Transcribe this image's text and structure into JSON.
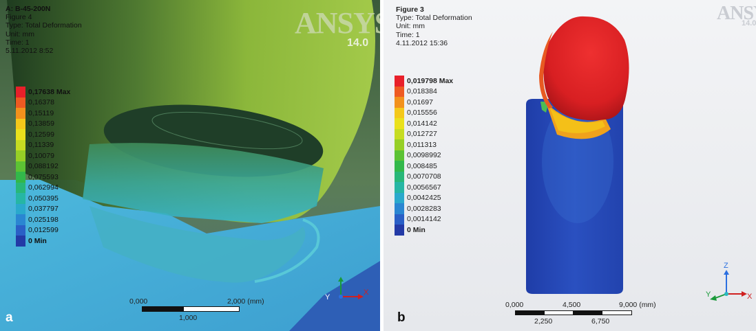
{
  "panel_a": {
    "label": "a",
    "title": "A: B-45-200N",
    "figure": "Figure 4",
    "type": "Type: Total Deformation",
    "unit": "Unit: mm",
    "time": "Time: 1",
    "date": "5.11.2012 8:52",
    "logo": "ANSYS",
    "version": "14.0",
    "legend": [
      {
        "value": "0,17638 Max",
        "color": "#e8202a",
        "bold": true
      },
      {
        "value": "0,16378",
        "color": "#ee5a22",
        "bold": false
      },
      {
        "value": "0,15119",
        "color": "#f2911c",
        "bold": false
      },
      {
        "value": "0,13859",
        "color": "#f4c81a",
        "bold": false
      },
      {
        "value": "0,12599",
        "color": "#eae11c",
        "bold": false
      },
      {
        "value": "0,11339",
        "color": "#c6dc22",
        "bold": false
      },
      {
        "value": "0,10079",
        "color": "#96cf26",
        "bold": false
      },
      {
        "value": "0,088192",
        "color": "#5cc234",
        "bold": false
      },
      {
        "value": "0,075593",
        "color": "#32b84a",
        "bold": false
      },
      {
        "value": "0,062994",
        "color": "#28b778",
        "bold": false
      },
      {
        "value": "0,050395",
        "color": "#26b6a4",
        "bold": false
      },
      {
        "value": "0,037797",
        "color": "#2aa9cc",
        "bold": false
      },
      {
        "value": "0,025198",
        "color": "#2a86d2",
        "bold": false
      },
      {
        "value": "0,012599",
        "color": "#2a5fc6",
        "bold": false
      },
      {
        "value": "0 Min",
        "color": "#233aa6",
        "bold": true
      }
    ],
    "scale": {
      "start": "0,000",
      "end": "2,000 (mm)",
      "mid": "1,000"
    },
    "triad": {
      "y": "Y",
      "x": "X"
    }
  },
  "panel_b": {
    "label": "b",
    "figure": "Figure 3",
    "type": "Type: Total Deformation",
    "unit": "Unit: mm",
    "time": "Time: 1",
    "date": "4.11.2012 15:36",
    "logo": "ANSYS",
    "version": "14.0",
    "legend": [
      {
        "value": "0,019798 Max",
        "color": "#e8202a",
        "bold": true
      },
      {
        "value": "0,018384",
        "color": "#ee5a22",
        "bold": false
      },
      {
        "value": "0,01697",
        "color": "#f2911c",
        "bold": false
      },
      {
        "value": "0,015556",
        "color": "#f4c81a",
        "bold": false
      },
      {
        "value": "0,014142",
        "color": "#eae11c",
        "bold": false
      },
      {
        "value": "0,012727",
        "color": "#c6dc22",
        "bold": false
      },
      {
        "value": "0,011313",
        "color": "#96cf26",
        "bold": false
      },
      {
        "value": "0,0098992",
        "color": "#5cc234",
        "bold": false
      },
      {
        "value": "0,008485",
        "color": "#32b84a",
        "bold": false
      },
      {
        "value": "0,0070708",
        "color": "#28b778",
        "bold": false
      },
      {
        "value": "0,0056567",
        "color": "#26b6a4",
        "bold": false
      },
      {
        "value": "0,0042425",
        "color": "#2aa9cc",
        "bold": false
      },
      {
        "value": "0,0028283",
        "color": "#2a86d2",
        "bold": false
      },
      {
        "value": "0,0014142",
        "color": "#2a5fc6",
        "bold": false
      },
      {
        "value": "0 Min",
        "color": "#233aa6",
        "bold": true
      }
    ],
    "scale": {
      "t0": "0,000",
      "t1": "4,500",
      "t2": "9,000 (mm)",
      "b1": "2,250",
      "b2": "6,750"
    },
    "triad": {
      "z": "Z",
      "y": "Y",
      "x": "X"
    }
  }
}
